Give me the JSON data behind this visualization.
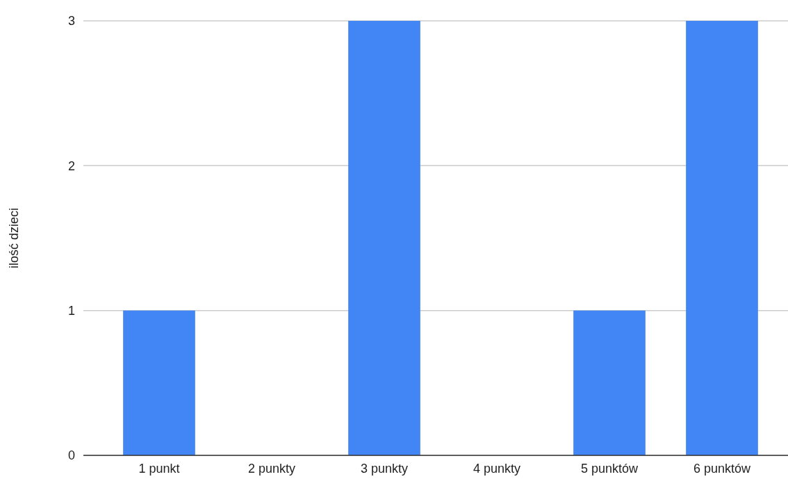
{
  "chart_data": {
    "type": "bar",
    "ylabel": "ilość dzieci",
    "categories": [
      "1 punkt",
      "2 punkty",
      "3 punkty",
      "4 punkty",
      "5 punktów",
      "6 punktów"
    ],
    "values": [
      1,
      0,
      3,
      0,
      1,
      3
    ],
    "color": "#4285f4",
    "ylim": [
      0,
      3
    ],
    "yticks": [
      0,
      1,
      2,
      3
    ],
    "grid": "y"
  }
}
